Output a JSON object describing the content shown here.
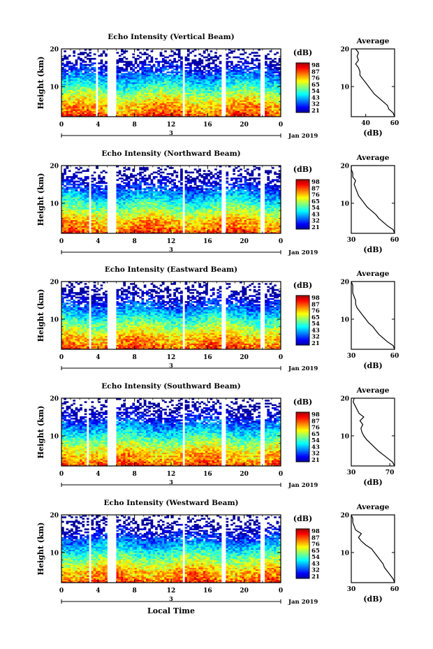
{
  "figure": {
    "xlabel": "Local Time",
    "date_label": "3",
    "month_label": "Jan 2019",
    "colorbar_unit": "(dB)",
    "avg_title": "Average",
    "avg_xlabel": "(dB)"
  },
  "chart_data": [
    {
      "type": "heatmap",
      "title": "Echo Intensity (Vertical Beam)",
      "ylabel": "Height (km)",
      "xlim": [
        0,
        24
      ],
      "xticks": [
        "0",
        "4",
        "8",
        "12",
        "16",
        "20",
        "0"
      ],
      "ylim": [
        2,
        20
      ],
      "yticks": [
        "10",
        "20"
      ],
      "colorbar_ticks": [
        "98",
        "87",
        "76",
        "65",
        "54",
        "43",
        "32",
        "21"
      ],
      "gaps": [
        [
          3.7,
          4.0
        ],
        [
          5.1,
          5.9
        ],
        [
          13.2,
          13.6
        ],
        [
          17.6,
          17.9
        ],
        [
          21.8,
          22.2
        ]
      ],
      "average": {
        "xlim": [
          30,
          60
        ],
        "xticks": [
          "40",
          "60"
        ],
        "profile": [
          [
            2,
            60
          ],
          [
            3,
            59
          ],
          [
            4,
            56
          ],
          [
            5,
            55
          ],
          [
            6,
            52
          ],
          [
            7,
            49
          ],
          [
            8,
            46
          ],
          [
            9,
            44
          ],
          [
            10,
            42
          ],
          [
            11,
            40
          ],
          [
            12,
            38
          ],
          [
            13,
            36
          ],
          [
            14,
            36
          ],
          [
            15,
            35
          ],
          [
            16,
            33
          ],
          [
            17,
            35
          ],
          [
            18,
            34
          ],
          [
            19,
            35
          ],
          [
            20,
            33
          ]
        ]
      }
    },
    {
      "type": "heatmap",
      "title": "Echo Intensity (Northward Beam)",
      "ylabel": "Height (km)",
      "xlim": [
        0,
        24
      ],
      "xticks": [
        "0",
        "4",
        "8",
        "12",
        "16",
        "20",
        "0"
      ],
      "ylim": [
        2,
        20
      ],
      "yticks": [
        "10",
        "20"
      ],
      "colorbar_ticks": [
        "98",
        "87",
        "76",
        "65",
        "54",
        "43",
        "32",
        "21"
      ],
      "gaps": [
        [
          3.0,
          3.3
        ],
        [
          5.1,
          5.9
        ],
        [
          13.2,
          13.6
        ],
        [
          17.6,
          17.9
        ],
        [
          21.8,
          22.2
        ]
      ],
      "average": {
        "xlim": [
          30,
          60
        ],
        "xticks": [
          "30",
          "60"
        ],
        "profile": [
          [
            2,
            60
          ],
          [
            3,
            59
          ],
          [
            4,
            55
          ],
          [
            5,
            52
          ],
          [
            6,
            49
          ],
          [
            7,
            47
          ],
          [
            8,
            44
          ],
          [
            9,
            41
          ],
          [
            10,
            39
          ],
          [
            11,
            37
          ],
          [
            12,
            35
          ],
          [
            13,
            34
          ],
          [
            14,
            33
          ],
          [
            15,
            32
          ],
          [
            16,
            33
          ],
          [
            17,
            31
          ],
          [
            18,
            31
          ],
          [
            19,
            30
          ],
          [
            20,
            30
          ]
        ]
      }
    },
    {
      "type": "heatmap",
      "title": "Echo Intensity (Eastward Beam)",
      "ylabel": "Height (km)",
      "xlim": [
        0,
        24
      ],
      "xticks": [
        "0",
        "4",
        "8",
        "12",
        "16",
        "20",
        "0"
      ],
      "ylim": [
        2,
        20
      ],
      "yticks": [
        "10",
        "20"
      ],
      "colorbar_ticks": [
        "98",
        "87",
        "76",
        "65",
        "54",
        "43",
        "32",
        "21"
      ],
      "gaps": [
        [
          3.0,
          3.3
        ],
        [
          5.1,
          5.9
        ],
        [
          13.2,
          13.6
        ],
        [
          17.6,
          17.9
        ],
        [
          21.8,
          22.2
        ]
      ],
      "average": {
        "xlim": [
          30,
          60
        ],
        "xticks": [
          "30",
          "60"
        ],
        "profile": [
          [
            2,
            60
          ],
          [
            3,
            59
          ],
          [
            4,
            55
          ],
          [
            5,
            52
          ],
          [
            6,
            49
          ],
          [
            7,
            47
          ],
          [
            8,
            45
          ],
          [
            9,
            42
          ],
          [
            10,
            40
          ],
          [
            11,
            38
          ],
          [
            12,
            36
          ],
          [
            13,
            34
          ],
          [
            14,
            33
          ],
          [
            15,
            33
          ],
          [
            16,
            32
          ],
          [
            17,
            31
          ],
          [
            18,
            31
          ],
          [
            19,
            31
          ],
          [
            20,
            30
          ]
        ]
      }
    },
    {
      "type": "heatmap",
      "title": "Echo Intensity (Southward Beam)",
      "ylabel": "Height (km)",
      "xlim": [
        0,
        24
      ],
      "xticks": [
        "0",
        "4",
        "8",
        "12",
        "16",
        "20",
        "0"
      ],
      "ylim": [
        2,
        20
      ],
      "yticks": [
        "10",
        "20"
      ],
      "colorbar_ticks": [
        "98",
        "87",
        "76",
        "65",
        "54",
        "43",
        "32",
        "21"
      ],
      "gaps": [
        [
          2.7,
          3.1
        ],
        [
          5.1,
          5.9
        ],
        [
          13.2,
          13.6
        ],
        [
          17.6,
          17.9
        ],
        [
          21.8,
          22.2
        ]
      ],
      "average": {
        "xlim": [
          30,
          75
        ],
        "xticks": [
          "30",
          "70"
        ],
        "profile": [
          [
            2,
            75
          ],
          [
            3,
            73
          ],
          [
            4,
            68
          ],
          [
            5,
            63
          ],
          [
            6,
            58
          ],
          [
            7,
            54
          ],
          [
            8,
            50
          ],
          [
            9,
            46
          ],
          [
            10,
            43
          ],
          [
            11,
            41
          ],
          [
            12,
            40
          ],
          [
            13,
            42
          ],
          [
            14,
            39
          ],
          [
            15,
            43
          ],
          [
            16,
            38
          ],
          [
            17,
            36
          ],
          [
            18,
            34
          ],
          [
            19,
            32
          ],
          [
            20,
            33
          ]
        ]
      }
    },
    {
      "type": "heatmap",
      "title": "Echo Intensity (Westward Beam)",
      "ylabel": "Height (km)",
      "xlim": [
        0,
        24
      ],
      "xticks": [
        "0",
        "4",
        "8",
        "12",
        "16",
        "20",
        "0"
      ],
      "ylim": [
        2,
        20
      ],
      "yticks": [
        "10",
        "20"
      ],
      "colorbar_ticks": [
        "98",
        "87",
        "76",
        "65",
        "54",
        "43",
        "32",
        "21"
      ],
      "gaps": [
        [
          3.0,
          3.3
        ],
        [
          5.1,
          5.9
        ],
        [
          13.2,
          13.6
        ],
        [
          17.6,
          17.9
        ],
        [
          21.8,
          22.2
        ]
      ],
      "average": {
        "xlim": [
          30,
          60
        ],
        "xticks": [
          "30",
          "60"
        ],
        "profile": [
          [
            2,
            60
          ],
          [
            3,
            59
          ],
          [
            4,
            57
          ],
          [
            5,
            55
          ],
          [
            6,
            53
          ],
          [
            7,
            52
          ],
          [
            8,
            50
          ],
          [
            9,
            48
          ],
          [
            10,
            46
          ],
          [
            11,
            44
          ],
          [
            12,
            40
          ],
          [
            13,
            37
          ],
          [
            14,
            35
          ],
          [
            15,
            37
          ],
          [
            16,
            33
          ],
          [
            17,
            32
          ],
          [
            18,
            31
          ],
          [
            19,
            31
          ],
          [
            20,
            30
          ]
        ]
      }
    }
  ]
}
